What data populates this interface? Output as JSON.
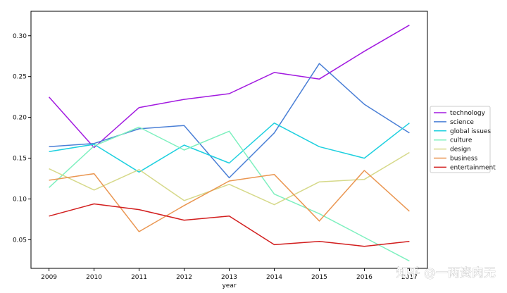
{
  "chart_data": {
    "type": "line",
    "title": "",
    "xlabel": "year",
    "ylabel": "",
    "x": [
      2009,
      2010,
      2011,
      2012,
      2013,
      2014,
      2015,
      2016,
      2017
    ],
    "x_tick_labels": [
      "2009",
      "2010",
      "2011",
      "2012",
      "2013",
      "2014",
      "2015",
      "2016",
      "2017"
    ],
    "xlim": [
      2008.6,
      2017.4
    ],
    "ylim": [
      0.015,
      0.33
    ],
    "y_ticks": [
      0.05,
      0.1,
      0.15,
      0.2,
      0.25,
      0.3
    ],
    "y_tick_labels": [
      "0.05",
      "0.10",
      "0.15",
      "0.20",
      "0.25",
      "0.30"
    ],
    "grid": false,
    "legend_position": "right, outside plot",
    "series": [
      {
        "name": "technology",
        "color": "#a21ae0",
        "values": [
          0.225,
          0.163,
          0.212,
          0.222,
          0.229,
          0.255,
          0.247,
          0.281,
          0.313
        ]
      },
      {
        "name": "science",
        "color": "#4a7fd6",
        "values": [
          0.164,
          0.168,
          0.186,
          0.19,
          0.126,
          0.181,
          0.266,
          0.216,
          0.181
        ]
      },
      {
        "name": "global issues",
        "color": "#1ed0df",
        "values": [
          0.158,
          0.167,
          0.133,
          0.166,
          0.144,
          0.193,
          0.164,
          0.15,
          0.193
        ]
      },
      {
        "name": "culture",
        "color": "#7ef0bf",
        "values": [
          0.114,
          0.165,
          0.188,
          0.16,
          0.183,
          0.106,
          0.082,
          0.053,
          0.024
        ]
      },
      {
        "name": "design",
        "color": "#d6d98a",
        "values": [
          0.137,
          0.111,
          0.136,
          0.098,
          0.118,
          0.093,
          0.121,
          0.124,
          0.157
        ]
      },
      {
        "name": "business",
        "color": "#ea9651",
        "values": [
          0.123,
          0.131,
          0.06,
          0.092,
          0.122,
          0.13,
          0.073,
          0.135,
          0.085
        ]
      },
      {
        "name": "entertainment",
        "color": "#d21e1e",
        "values": [
          0.079,
          0.094,
          0.087,
          0.074,
          0.079,
          0.044,
          0.048,
          0.042,
          0.048
        ]
      }
    ]
  },
  "watermark": "知乎 @一两资肉无"
}
